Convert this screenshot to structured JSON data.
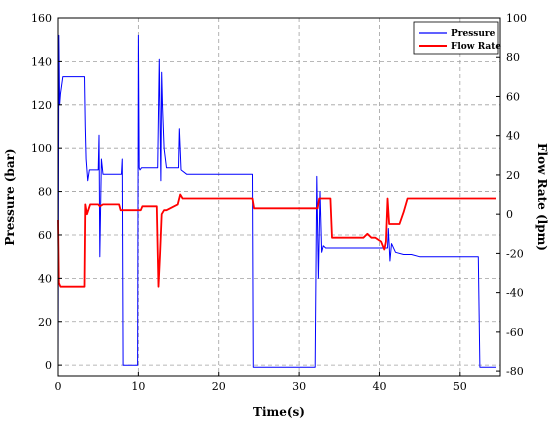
{
  "chart_data": {
    "type": "line",
    "xlabel": "Time(s)",
    "ylabel_left": "Pressure (bar)",
    "ylabel_right": "Flow Rate (lpm)",
    "xlim": [
      0,
      55
    ],
    "ylim_left": [
      -5,
      160
    ],
    "ylim_right": [
      -82.5,
      100
    ],
    "x_ticks": [
      0,
      10,
      20,
      30,
      40,
      50
    ],
    "y_ticks_left": [
      0,
      20,
      40,
      60,
      80,
      100,
      120,
      140,
      160
    ],
    "y_ticks_right": [
      -80,
      -60,
      -40,
      -20,
      0,
      20,
      40,
      60,
      80,
      100
    ],
    "grid": true,
    "legend_position": "top-right",
    "series": [
      {
        "name": "Pressure",
        "axis": "left",
        "color": "#0000ff",
        "x": [
          0,
          0.1,
          0.2,
          0.3,
          0.6,
          3.3,
          3.4,
          3.5,
          3.7,
          3.9,
          4.2,
          4.6,
          5.0,
          5.1,
          5.2,
          5.4,
          5.6,
          5.8,
          6.0,
          7.8,
          7.9,
          8.0,
          8.1,
          8.3,
          9.9,
          10.0,
          10.1,
          10.2,
          10.4,
          12.4,
          12.6,
          12.8,
          12.9,
          13.0,
          13.2,
          13.5,
          15.0,
          15.1,
          15.3,
          16.0,
          17.0,
          18.0,
          19.0,
          24.2,
          24.3,
          32.0,
          32.2,
          32.4,
          32.6,
          32.8,
          33.0,
          33.3,
          33.6,
          33.8,
          34.0,
          38.0,
          39.0,
          41.0,
          41.1,
          41.3,
          41.5,
          42.0,
          43.0,
          44.0,
          45.0,
          52.3,
          52.5,
          54.5
        ],
        "y": [
          0,
          152,
          120,
          125,
          133,
          133,
          110,
          95,
          85,
          90,
          90,
          90,
          90,
          106,
          50,
          95,
          88,
          88,
          88,
          88,
          88,
          95,
          0,
          0,
          0,
          152,
          91,
          90,
          91,
          91,
          141,
          85,
          135,
          120,
          100,
          91,
          91,
          109,
          90,
          88,
          88,
          88,
          88,
          88,
          -1,
          -1,
          87,
          40,
          80,
          52,
          55,
          54,
          54,
          54,
          54,
          54,
          54,
          54,
          63,
          48,
          56,
          52,
          51,
          51,
          50,
          50,
          -1,
          -1
        ]
      },
      {
        "name": "Flow Rate",
        "axis": "right",
        "color": "#ff0000",
        "x": [
          0,
          0.1,
          0.3,
          0.6,
          3.3,
          3.4,
          3.6,
          4.0,
          4.2,
          5.0,
          5.2,
          5.6,
          7.6,
          7.8,
          8.0,
          10.3,
          10.5,
          12.3,
          12.5,
          12.7,
          12.9,
          13.2,
          13.5,
          14.9,
          15.2,
          15.5,
          16.0,
          24.2,
          24.4,
          32.3,
          32.5,
          33.9,
          34.1,
          38.0,
          38.5,
          39.0,
          39.5,
          40.2,
          40.6,
          40.8,
          41.0,
          41.2,
          41.5,
          42.5,
          43.0,
          43.5,
          54.5
        ],
        "y": [
          -3,
          -35,
          -37,
          -37,
          -37,
          5,
          0,
          5,
          5,
          5,
          4,
          5,
          5,
          2,
          2,
          2,
          4,
          4,
          -37,
          -20,
          0,
          2,
          2,
          5,
          10,
          8,
          8,
          8,
          3,
          3,
          8,
          8,
          -12,
          -12,
          -10,
          -12,
          -12,
          -14,
          -18,
          -14,
          8,
          -5,
          -5,
          -5,
          1,
          8,
          8
        ]
      }
    ]
  }
}
